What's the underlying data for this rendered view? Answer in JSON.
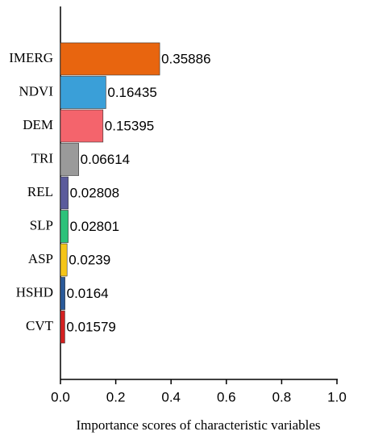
{
  "chart_data": {
    "type": "barh",
    "x_label": "Importance scores of characteristic variables",
    "categories": [
      "IMERG",
      "NDVI",
      "DEM",
      "TRI",
      "REL",
      "SLP",
      "ASP",
      "HSHD",
      "CVT"
    ],
    "values": [
      0.35886,
      0.16435,
      0.15395,
      0.06614,
      0.02808,
      0.02801,
      0.0239,
      0.0164,
      0.01579
    ],
    "colors": [
      "#e8650f",
      "#3a9fd8",
      "#f4646c",
      "#9a9a9a",
      "#5b5b9c",
      "#2cc27a",
      "#f5c518",
      "#2a5a9a",
      "#d42020"
    ],
    "xlim": [
      0,
      1
    ],
    "xticks": [
      {
        "value": 0,
        "label": "0.0"
      },
      0.2,
      0.4,
      0.6,
      0.8,
      {
        "value": 1,
        "label": "1.0"
      }
    ]
  }
}
